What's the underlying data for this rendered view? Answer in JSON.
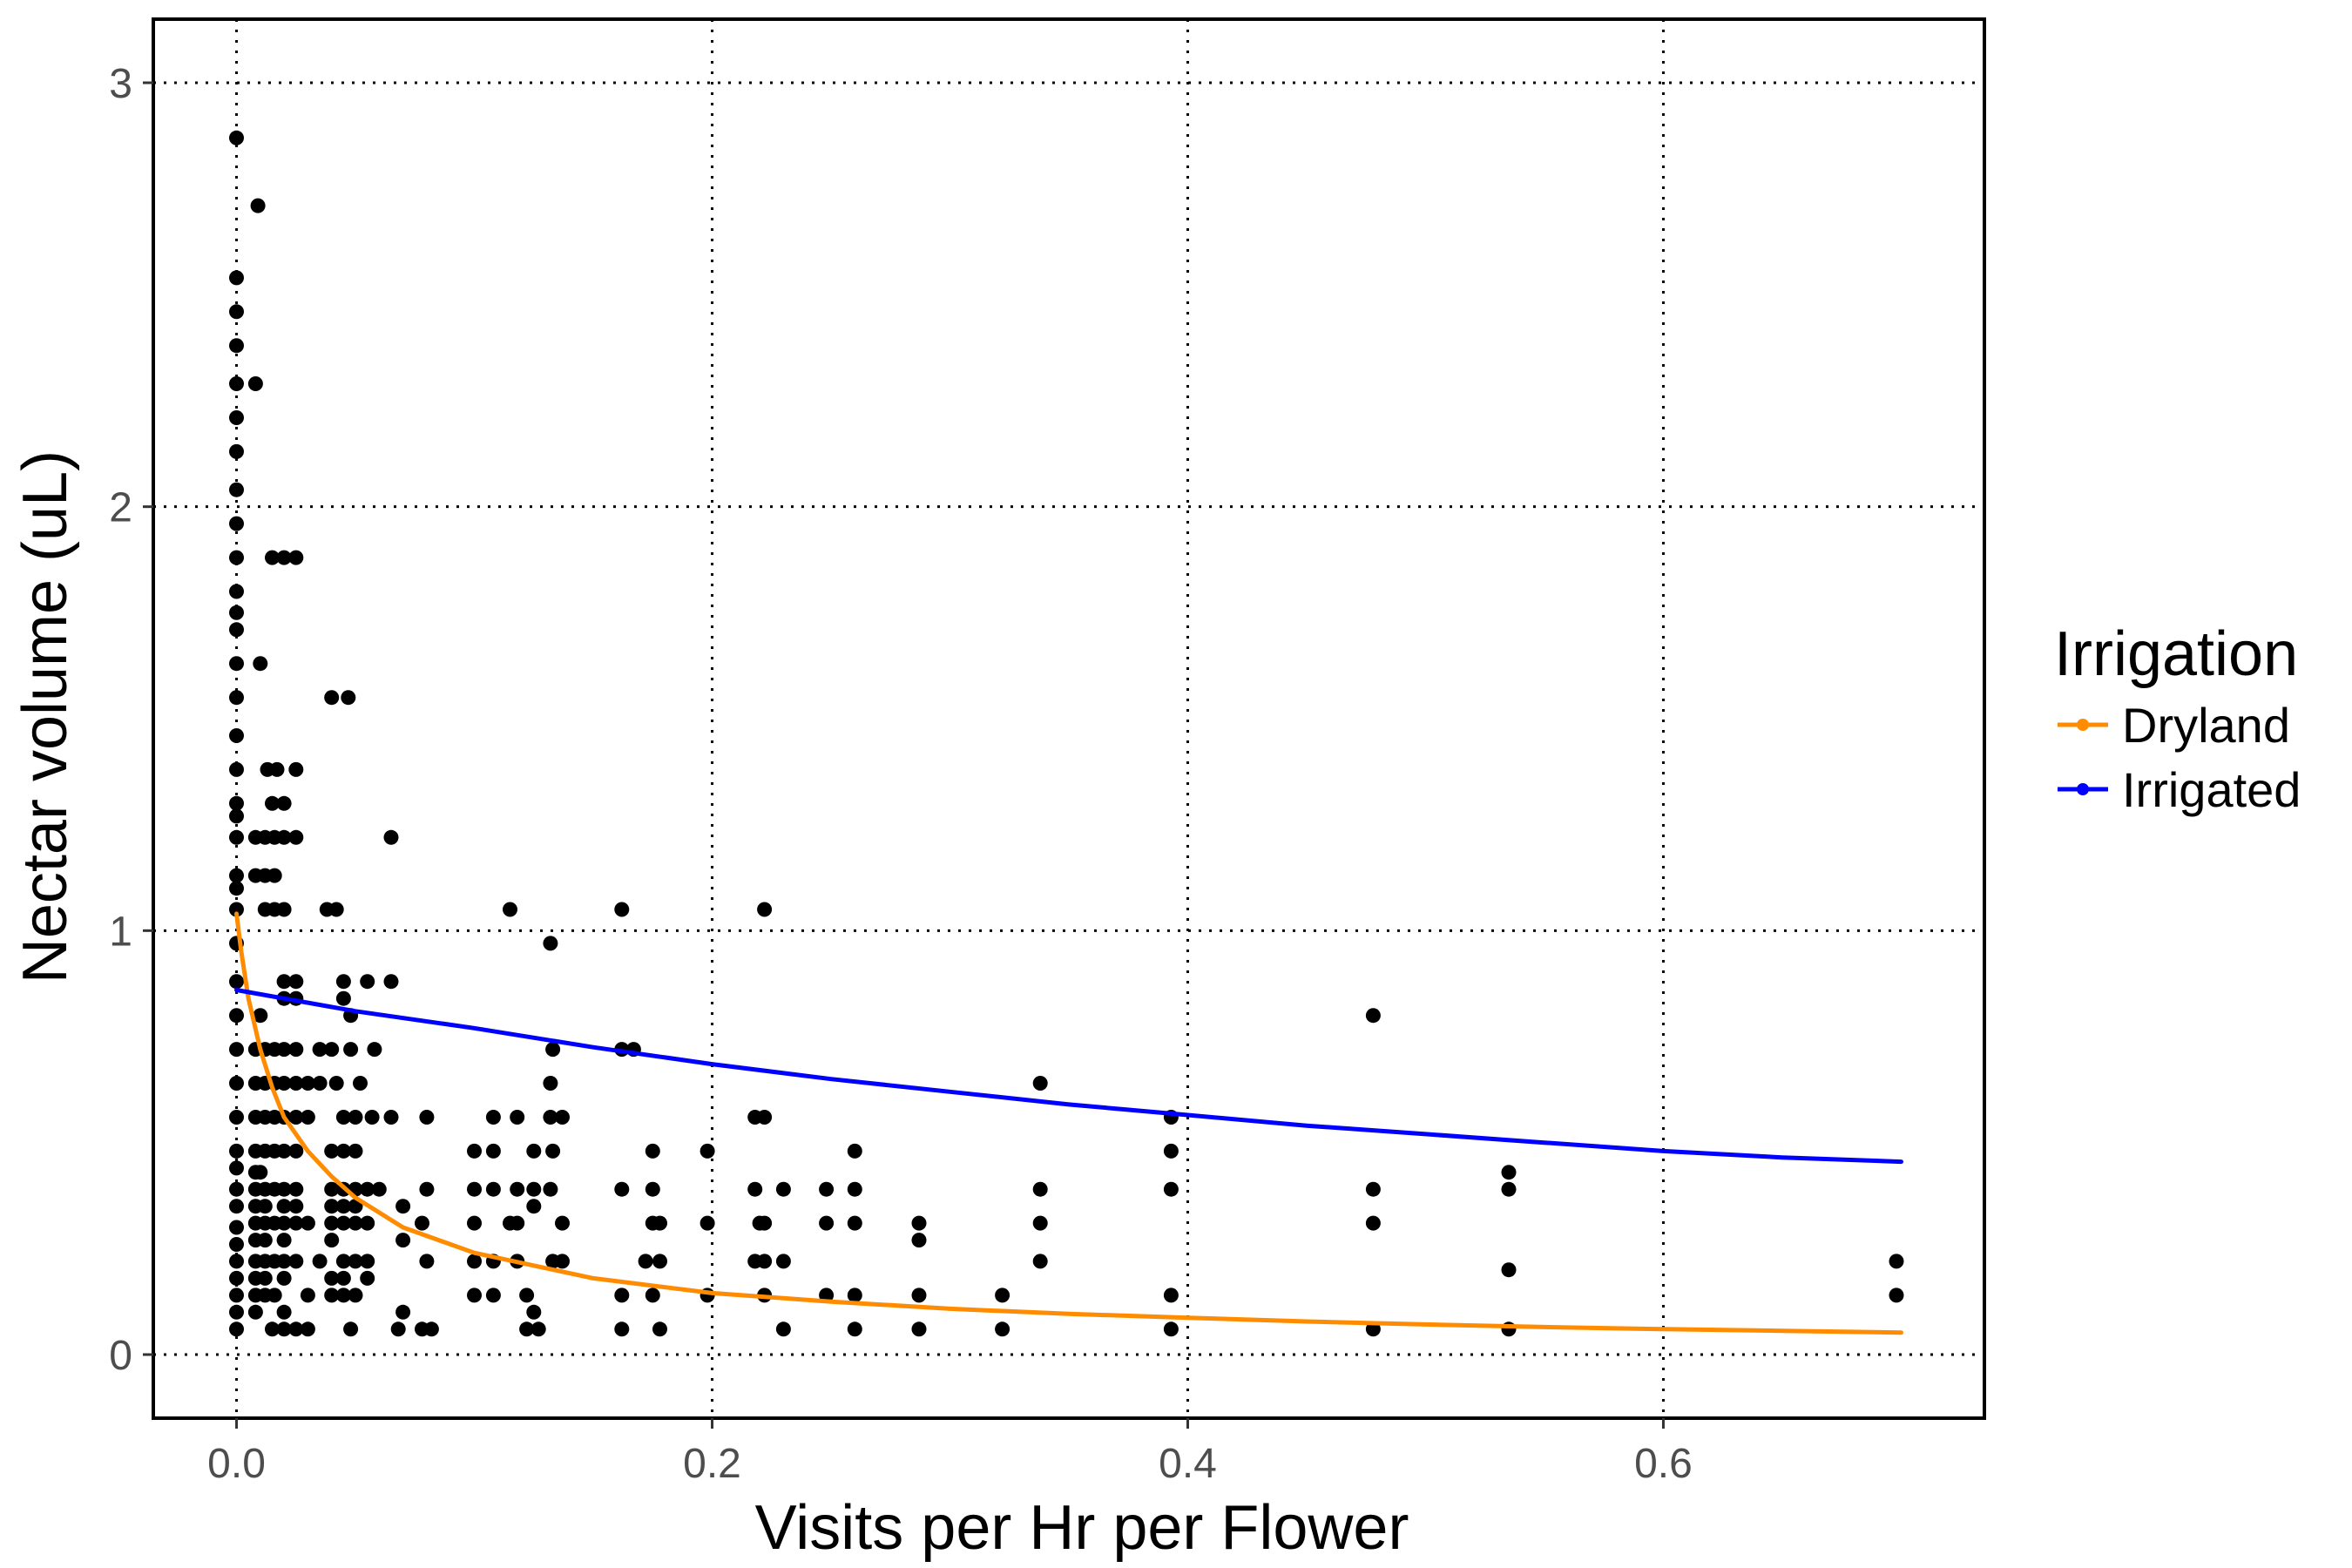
{
  "chart_data": {
    "type": "scatter",
    "title": "",
    "xlabel": "Visits per Hr per Flower",
    "ylabel": "Nectar volume (uL)",
    "xlim": [
      -0.035,
      0.735
    ],
    "ylim": [
      -0.15,
      3.15
    ],
    "x_ticks": [
      0.0,
      0.2,
      0.4,
      0.6
    ],
    "x_tick_labels": [
      "0.0",
      "0.2",
      "0.4",
      "0.6"
    ],
    "y_ticks": [
      0,
      1,
      2,
      3
    ],
    "y_tick_labels": [
      "0",
      "1",
      "2",
      "3"
    ],
    "grid": true,
    "legend": {
      "title": "Irrigation",
      "placement": "right",
      "entries": [
        {
          "label": "Dryland",
          "color": "#ff8c00"
        },
        {
          "label": "Irrigated",
          "color": "#0000ff"
        }
      ]
    },
    "points": [
      [
        0.0,
        2.87
      ],
      [
        0.009,
        2.71
      ],
      [
        0.0,
        2.54
      ],
      [
        0.0,
        2.46
      ],
      [
        0.0,
        2.38
      ],
      [
        0.0,
        2.29
      ],
      [
        0.008,
        2.29
      ],
      [
        0.0,
        2.21
      ],
      [
        0.0,
        2.13
      ],
      [
        0.0,
        2.04
      ],
      [
        0.0,
        1.96
      ],
      [
        0.0,
        1.88
      ],
      [
        0.0,
        1.8
      ],
      [
        0.0,
        1.75
      ],
      [
        0.0,
        1.71
      ],
      [
        0.0,
        1.63
      ],
      [
        0.0,
        1.55
      ],
      [
        0.0,
        1.46
      ],
      [
        0.0,
        1.38
      ],
      [
        0.0,
        1.3
      ],
      [
        0.0,
        1.27
      ],
      [
        0.0,
        1.22
      ],
      [
        0.0,
        1.13
      ],
      [
        0.0,
        1.1
      ],
      [
        0.0,
        1.05
      ],
      [
        0.0,
        0.97
      ],
      [
        0.0,
        0.88
      ],
      [
        0.0,
        0.8
      ],
      [
        0.0,
        0.72
      ],
      [
        0.0,
        0.64
      ],
      [
        0.0,
        0.56
      ],
      [
        0.0,
        0.48
      ],
      [
        0.0,
        0.44
      ],
      [
        0.0,
        0.39
      ],
      [
        0.0,
        0.35
      ],
      [
        0.0,
        0.3
      ],
      [
        0.0,
        0.26
      ],
      [
        0.0,
        0.22
      ],
      [
        0.0,
        0.18
      ],
      [
        0.0,
        0.14
      ],
      [
        0.0,
        0.1
      ],
      [
        0.0,
        0.06
      ],
      [
        0.015,
        1.88
      ],
      [
        0.02,
        1.88
      ],
      [
        0.025,
        1.88
      ],
      [
        0.01,
        1.63
      ],
      [
        0.04,
        1.55
      ],
      [
        0.047,
        1.55
      ],
      [
        0.013,
        1.38
      ],
      [
        0.017,
        1.38
      ],
      [
        0.025,
        1.38
      ],
      [
        0.015,
        1.3
      ],
      [
        0.02,
        1.3
      ],
      [
        0.008,
        1.22
      ],
      [
        0.012,
        1.22
      ],
      [
        0.016,
        1.22
      ],
      [
        0.02,
        1.22
      ],
      [
        0.025,
        1.22
      ],
      [
        0.065,
        1.22
      ],
      [
        0.008,
        1.13
      ],
      [
        0.012,
        1.13
      ],
      [
        0.016,
        1.13
      ],
      [
        0.012,
        1.05
      ],
      [
        0.016,
        1.05
      ],
      [
        0.02,
        1.05
      ],
      [
        0.038,
        1.05
      ],
      [
        0.042,
        1.05
      ],
      [
        0.115,
        1.05
      ],
      [
        0.162,
        1.05
      ],
      [
        0.222,
        1.05
      ],
      [
        0.132,
        0.97
      ],
      [
        0.02,
        0.88
      ],
      [
        0.025,
        0.88
      ],
      [
        0.045,
        0.88
      ],
      [
        0.055,
        0.88
      ],
      [
        0.065,
        0.88
      ],
      [
        0.02,
        0.84
      ],
      [
        0.025,
        0.84
      ],
      [
        0.045,
        0.84
      ],
      [
        0.01,
        0.8
      ],
      [
        0.048,
        0.8
      ],
      [
        0.478,
        0.8
      ],
      [
        0.008,
        0.72
      ],
      [
        0.012,
        0.72
      ],
      [
        0.016,
        0.72
      ],
      [
        0.02,
        0.72
      ],
      [
        0.025,
        0.72
      ],
      [
        0.035,
        0.72
      ],
      [
        0.04,
        0.72
      ],
      [
        0.048,
        0.72
      ],
      [
        0.058,
        0.72
      ],
      [
        0.133,
        0.72
      ],
      [
        0.162,
        0.72
      ],
      [
        0.167,
        0.72
      ],
      [
        0.008,
        0.64
      ],
      [
        0.012,
        0.64
      ],
      [
        0.016,
        0.64
      ],
      [
        0.02,
        0.64
      ],
      [
        0.025,
        0.64
      ],
      [
        0.03,
        0.64
      ],
      [
        0.035,
        0.64
      ],
      [
        0.042,
        0.64
      ],
      [
        0.052,
        0.64
      ],
      [
        0.132,
        0.64
      ],
      [
        0.338,
        0.64
      ],
      [
        0.008,
        0.56
      ],
      [
        0.012,
        0.56
      ],
      [
        0.016,
        0.56
      ],
      [
        0.02,
        0.56
      ],
      [
        0.025,
        0.56
      ],
      [
        0.03,
        0.56
      ],
      [
        0.045,
        0.56
      ],
      [
        0.05,
        0.56
      ],
      [
        0.057,
        0.56
      ],
      [
        0.065,
        0.56
      ],
      [
        0.08,
        0.56
      ],
      [
        0.108,
        0.56
      ],
      [
        0.118,
        0.56
      ],
      [
        0.132,
        0.56
      ],
      [
        0.137,
        0.56
      ],
      [
        0.218,
        0.56
      ],
      [
        0.222,
        0.56
      ],
      [
        0.393,
        0.56
      ],
      [
        0.008,
        0.48
      ],
      [
        0.012,
        0.48
      ],
      [
        0.016,
        0.48
      ],
      [
        0.02,
        0.48
      ],
      [
        0.025,
        0.48
      ],
      [
        0.04,
        0.48
      ],
      [
        0.045,
        0.48
      ],
      [
        0.05,
        0.48
      ],
      [
        0.1,
        0.48
      ],
      [
        0.108,
        0.48
      ],
      [
        0.125,
        0.48
      ],
      [
        0.133,
        0.48
      ],
      [
        0.175,
        0.48
      ],
      [
        0.198,
        0.48
      ],
      [
        0.26,
        0.48
      ],
      [
        0.393,
        0.48
      ],
      [
        0.008,
        0.43
      ],
      [
        0.01,
        0.43
      ],
      [
        0.535,
        0.43
      ],
      [
        0.008,
        0.39
      ],
      [
        0.012,
        0.39
      ],
      [
        0.016,
        0.39
      ],
      [
        0.02,
        0.39
      ],
      [
        0.025,
        0.39
      ],
      [
        0.04,
        0.39
      ],
      [
        0.045,
        0.39
      ],
      [
        0.05,
        0.39
      ],
      [
        0.055,
        0.39
      ],
      [
        0.06,
        0.39
      ],
      [
        0.08,
        0.39
      ],
      [
        0.1,
        0.39
      ],
      [
        0.108,
        0.39
      ],
      [
        0.118,
        0.39
      ],
      [
        0.125,
        0.39
      ],
      [
        0.132,
        0.39
      ],
      [
        0.162,
        0.39
      ],
      [
        0.175,
        0.39
      ],
      [
        0.218,
        0.39
      ],
      [
        0.23,
        0.39
      ],
      [
        0.248,
        0.39
      ],
      [
        0.26,
        0.39
      ],
      [
        0.338,
        0.39
      ],
      [
        0.393,
        0.39
      ],
      [
        0.478,
        0.39
      ],
      [
        0.535,
        0.39
      ],
      [
        0.008,
        0.35
      ],
      [
        0.012,
        0.35
      ],
      [
        0.02,
        0.35
      ],
      [
        0.025,
        0.35
      ],
      [
        0.04,
        0.35
      ],
      [
        0.045,
        0.35
      ],
      [
        0.05,
        0.35
      ],
      [
        0.07,
        0.35
      ],
      [
        0.125,
        0.35
      ],
      [
        0.008,
        0.31
      ],
      [
        0.012,
        0.31
      ],
      [
        0.016,
        0.31
      ],
      [
        0.02,
        0.31
      ],
      [
        0.025,
        0.31
      ],
      [
        0.03,
        0.31
      ],
      [
        0.04,
        0.31
      ],
      [
        0.045,
        0.31
      ],
      [
        0.05,
        0.31
      ],
      [
        0.055,
        0.31
      ],
      [
        0.078,
        0.31
      ],
      [
        0.1,
        0.31
      ],
      [
        0.115,
        0.31
      ],
      [
        0.118,
        0.31
      ],
      [
        0.137,
        0.31
      ],
      [
        0.175,
        0.31
      ],
      [
        0.178,
        0.31
      ],
      [
        0.198,
        0.31
      ],
      [
        0.22,
        0.31
      ],
      [
        0.222,
        0.31
      ],
      [
        0.248,
        0.31
      ],
      [
        0.26,
        0.31
      ],
      [
        0.287,
        0.31
      ],
      [
        0.338,
        0.31
      ],
      [
        0.478,
        0.31
      ],
      [
        0.008,
        0.27
      ],
      [
        0.012,
        0.27
      ],
      [
        0.02,
        0.27
      ],
      [
        0.04,
        0.27
      ],
      [
        0.07,
        0.27
      ],
      [
        0.287,
        0.27
      ],
      [
        0.008,
        0.22
      ],
      [
        0.012,
        0.22
      ],
      [
        0.016,
        0.22
      ],
      [
        0.02,
        0.22
      ],
      [
        0.025,
        0.22
      ],
      [
        0.035,
        0.22
      ],
      [
        0.045,
        0.22
      ],
      [
        0.05,
        0.22
      ],
      [
        0.055,
        0.22
      ],
      [
        0.08,
        0.22
      ],
      [
        0.1,
        0.22
      ],
      [
        0.108,
        0.22
      ],
      [
        0.118,
        0.22
      ],
      [
        0.133,
        0.22
      ],
      [
        0.137,
        0.22
      ],
      [
        0.172,
        0.22
      ],
      [
        0.178,
        0.22
      ],
      [
        0.218,
        0.22
      ],
      [
        0.222,
        0.22
      ],
      [
        0.23,
        0.22
      ],
      [
        0.338,
        0.22
      ],
      [
        0.698,
        0.22
      ],
      [
        0.008,
        0.18
      ],
      [
        0.012,
        0.18
      ],
      [
        0.02,
        0.18
      ],
      [
        0.04,
        0.18
      ],
      [
        0.045,
        0.18
      ],
      [
        0.055,
        0.18
      ],
      [
        0.535,
        0.2
      ],
      [
        0.008,
        0.14
      ],
      [
        0.012,
        0.14
      ],
      [
        0.016,
        0.14
      ],
      [
        0.03,
        0.14
      ],
      [
        0.04,
        0.14
      ],
      [
        0.045,
        0.14
      ],
      [
        0.05,
        0.14
      ],
      [
        0.1,
        0.14
      ],
      [
        0.108,
        0.14
      ],
      [
        0.122,
        0.14
      ],
      [
        0.162,
        0.14
      ],
      [
        0.175,
        0.14
      ],
      [
        0.198,
        0.14
      ],
      [
        0.222,
        0.14
      ],
      [
        0.248,
        0.14
      ],
      [
        0.26,
        0.14
      ],
      [
        0.287,
        0.14
      ],
      [
        0.322,
        0.14
      ],
      [
        0.393,
        0.14
      ],
      [
        0.698,
        0.14
      ],
      [
        0.008,
        0.1
      ],
      [
        0.02,
        0.1
      ],
      [
        0.07,
        0.1
      ],
      [
        0.125,
        0.1
      ],
      [
        0.015,
        0.06
      ],
      [
        0.02,
        0.06
      ],
      [
        0.025,
        0.06
      ],
      [
        0.03,
        0.06
      ],
      [
        0.048,
        0.06
      ],
      [
        0.068,
        0.06
      ],
      [
        0.078,
        0.06
      ],
      [
        0.082,
        0.06
      ],
      [
        0.122,
        0.06
      ],
      [
        0.127,
        0.06
      ],
      [
        0.162,
        0.06
      ],
      [
        0.178,
        0.06
      ],
      [
        0.23,
        0.06
      ],
      [
        0.26,
        0.06
      ],
      [
        0.287,
        0.06
      ],
      [
        0.322,
        0.06
      ],
      [
        0.393,
        0.06
      ],
      [
        0.478,
        0.06
      ],
      [
        0.535,
        0.06
      ]
    ],
    "series": [
      {
        "name": "Dryland",
        "color": "#ff8c00",
        "x": [
          0.0,
          0.002,
          0.005,
          0.01,
          0.015,
          0.02,
          0.03,
          0.04,
          0.05,
          0.07,
          0.1,
          0.15,
          0.2,
          0.25,
          0.3,
          0.35,
          0.4,
          0.45,
          0.5,
          0.55,
          0.6,
          0.65,
          0.7
        ],
        "y": [
          1.04,
          0.95,
          0.84,
          0.72,
          0.63,
          0.56,
          0.48,
          0.42,
          0.37,
          0.3,
          0.24,
          0.18,
          0.145,
          0.125,
          0.108,
          0.096,
          0.087,
          0.078,
          0.071,
          0.065,
          0.06,
          0.056,
          0.052
        ]
      },
      {
        "name": "Irrigated",
        "color": "#0000ff",
        "x": [
          0.0,
          0.05,
          0.1,
          0.15,
          0.2,
          0.25,
          0.3,
          0.35,
          0.4,
          0.45,
          0.5,
          0.55,
          0.6,
          0.65,
          0.7
        ],
        "y": [
          0.86,
          0.81,
          0.77,
          0.725,
          0.685,
          0.65,
          0.62,
          0.59,
          0.565,
          0.54,
          0.52,
          0.5,
          0.48,
          0.465,
          0.455
        ]
      }
    ]
  }
}
